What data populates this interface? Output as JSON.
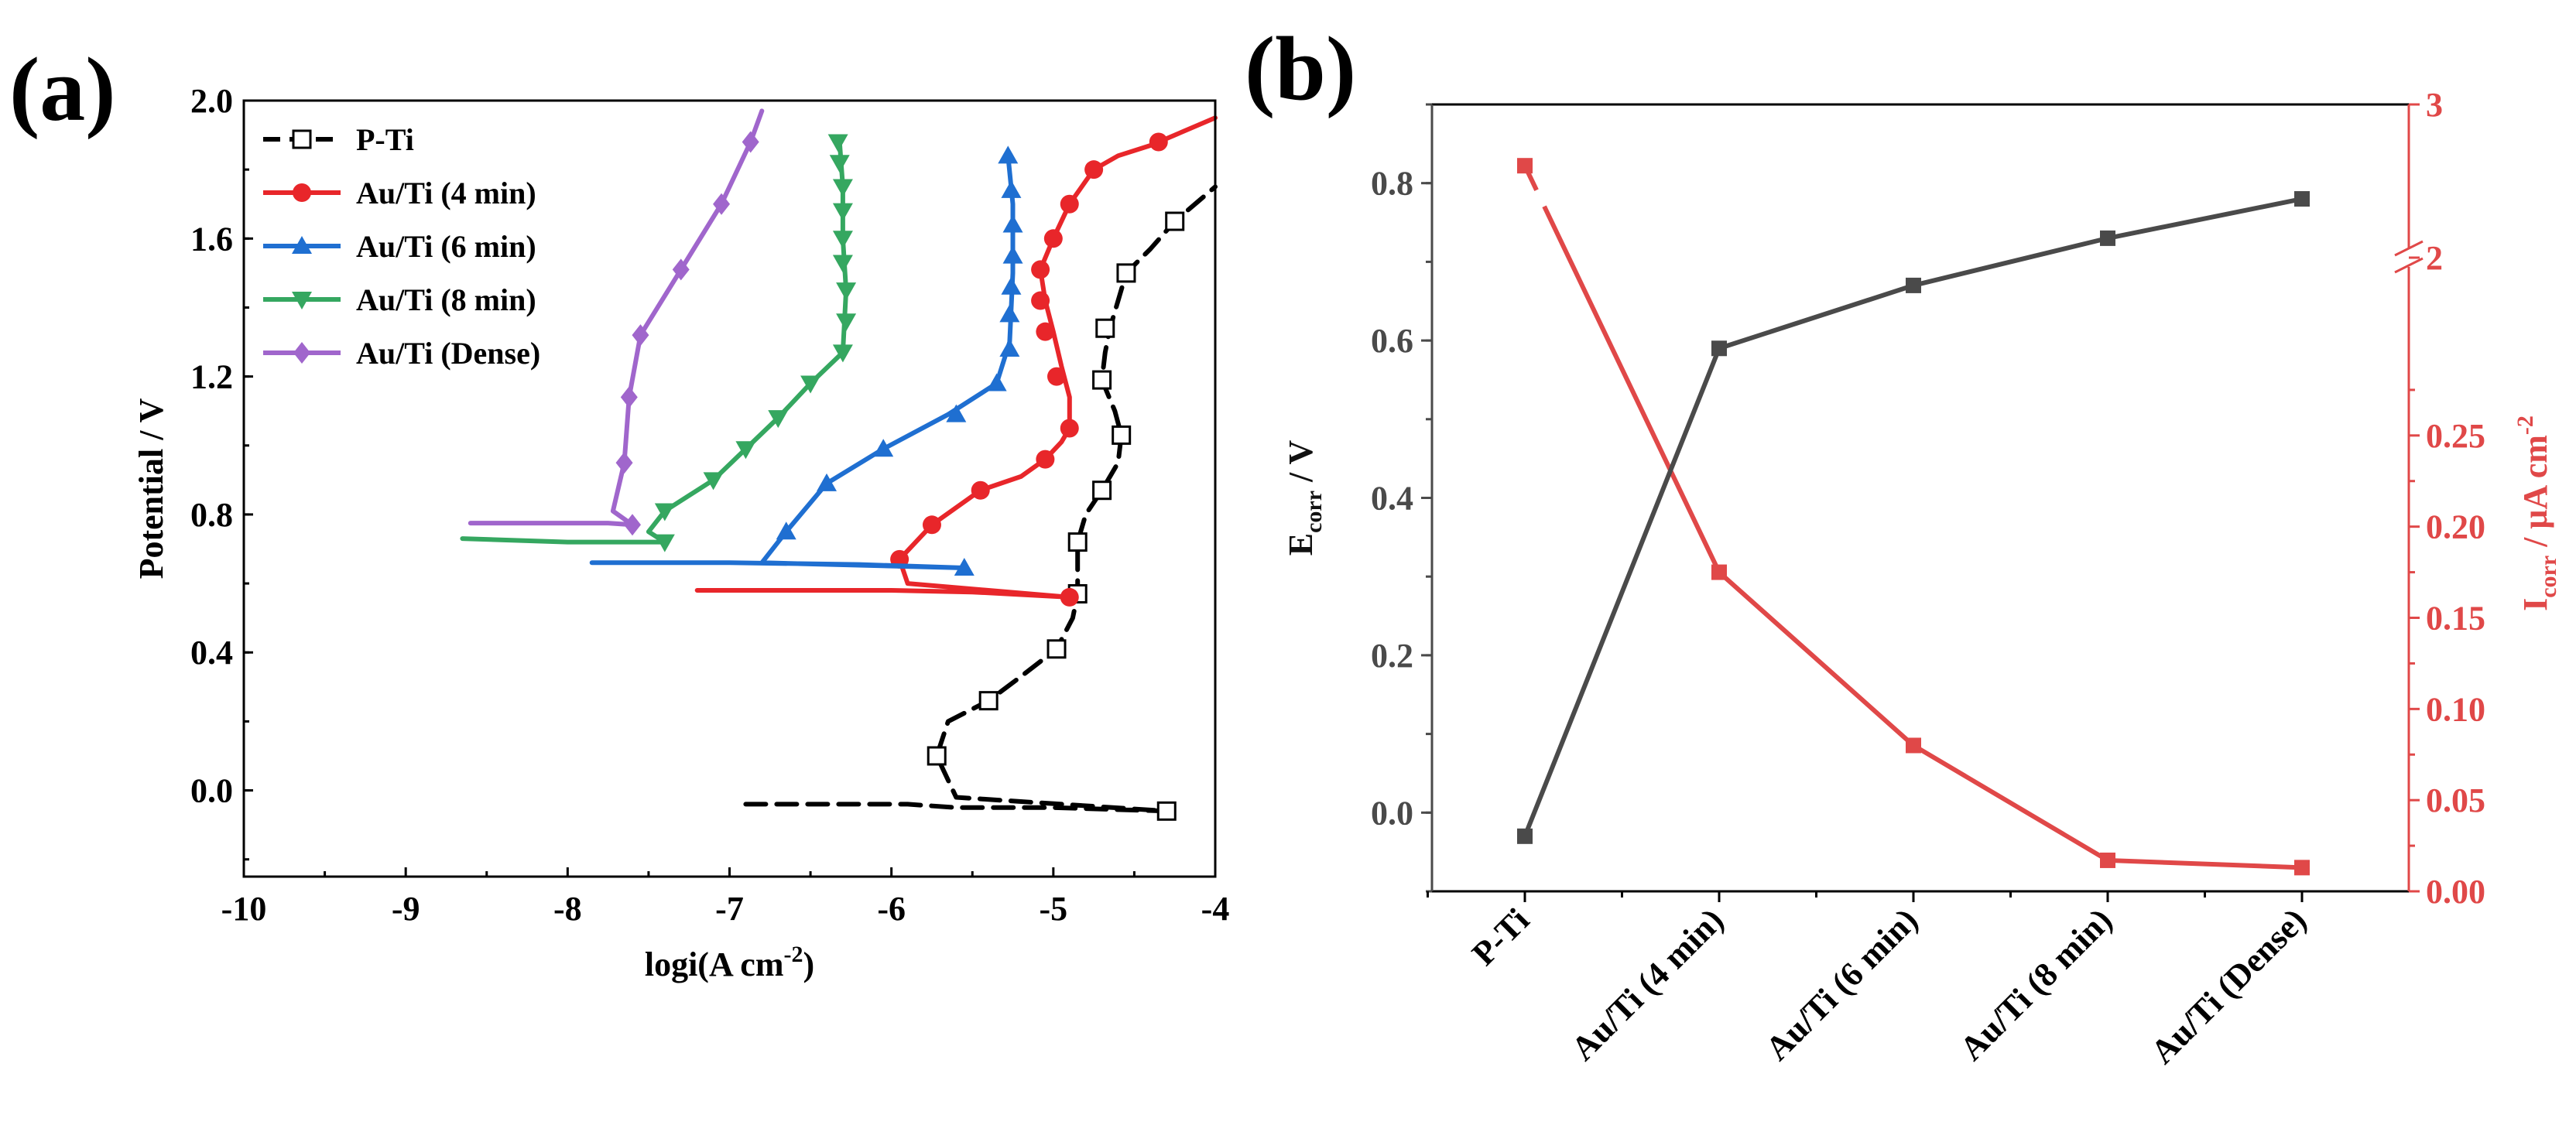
{
  "panels": {
    "a_label": "(a)",
    "b_label": "(b)"
  },
  "chart_data": [
    {
      "type": "line",
      "panel": "(a)",
      "title": "",
      "xlabel": "logi(A cm",
      "xlabel_sup": "-2",
      "xlabel_end": ")",
      "ylabel": "Potential / V",
      "xlim": [
        -10,
        -4
      ],
      "ylim": [
        -0.25,
        2.0
      ],
      "xticks": [
        -10,
        -9,
        -8,
        -7,
        -6,
        -5,
        -4
      ],
      "xtick_labels": [
        "-10",
        "-9",
        "-8",
        "-7",
        "-6",
        "-5",
        "-4"
      ],
      "yticks": [
        0.0,
        0.4,
        0.8,
        1.2,
        1.6,
        2.0
      ],
      "ytick_labels": [
        "0.0",
        "0.4",
        "0.8",
        "1.2",
        "1.6",
        "2.0"
      ],
      "legend_position": "top-left",
      "series": [
        {
          "name": "P-Ti",
          "color": "#000000",
          "dash": true,
          "marker": "open-square",
          "points": [
            [
              -6.9,
              -0.04
            ],
            [
              -6.3,
              -0.04
            ],
            [
              -5.9,
              -0.04
            ],
            [
              -5.6,
              -0.05
            ],
            [
              -5.0,
              -0.05
            ],
            [
              -4.3,
              -0.06
            ],
            [
              -5.6,
              -0.02
            ],
            [
              -5.72,
              0.1
            ],
            [
              -5.65,
              0.2
            ],
            [
              -5.4,
              0.26
            ],
            [
              -5.2,
              0.33
            ],
            [
              -4.98,
              0.41
            ],
            [
              -4.88,
              0.5
            ],
            [
              -4.85,
              0.57
            ],
            [
              -4.85,
              0.65
            ],
            [
              -4.85,
              0.72
            ],
            [
              -4.8,
              0.8
            ],
            [
              -4.7,
              0.87
            ],
            [
              -4.6,
              0.95
            ],
            [
              -4.58,
              1.03
            ],
            [
              -4.62,
              1.1
            ],
            [
              -4.7,
              1.19
            ],
            [
              -4.68,
              1.27
            ],
            [
              -4.65,
              1.34
            ],
            [
              -4.6,
              1.42
            ],
            [
              -4.55,
              1.5
            ],
            [
              -4.4,
              1.57
            ],
            [
              -4.25,
              1.65
            ],
            [
              -4.1,
              1.71
            ],
            [
              -4.0,
              1.75
            ]
          ],
          "markers": [
            [
              -4.3,
              -0.06
            ],
            [
              -5.72,
              0.1
            ],
            [
              -5.4,
              0.26
            ],
            [
              -4.98,
              0.41
            ],
            [
              -4.85,
              0.57
            ],
            [
              -4.85,
              0.72
            ],
            [
              -4.7,
              0.87
            ],
            [
              -4.58,
              1.03
            ],
            [
              -4.7,
              1.19
            ],
            [
              -4.68,
              1.34
            ],
            [
              -4.55,
              1.5
            ],
            [
              -4.25,
              1.65
            ]
          ]
        },
        {
          "name": "Au/Ti (4 min)",
          "color": "#e8262a",
          "dash": false,
          "marker": "circle",
          "points": [
            [
              -7.2,
              0.58
            ],
            [
              -6.5,
              0.58
            ],
            [
              -6.0,
              0.58
            ],
            [
              -5.5,
              0.575
            ],
            [
              -4.9,
              0.56
            ],
            [
              -5.9,
              0.6
            ],
            [
              -5.95,
              0.67
            ],
            [
              -5.75,
              0.77
            ],
            [
              -5.45,
              0.87
            ],
            [
              -5.2,
              0.91
            ],
            [
              -5.05,
              0.96
            ],
            [
              -4.95,
              1.01
            ],
            [
              -4.9,
              1.05
            ],
            [
              -4.9,
              1.14
            ],
            [
              -4.95,
              1.23
            ],
            [
              -5.0,
              1.33
            ],
            [
              -5.05,
              1.42
            ],
            [
              -5.08,
              1.51
            ],
            [
              -5.0,
              1.6
            ],
            [
              -4.9,
              1.7
            ],
            [
              -4.75,
              1.8
            ],
            [
              -4.6,
              1.84
            ],
            [
              -4.4,
              1.87
            ],
            [
              -4.25,
              1.9
            ],
            [
              -4.0,
              1.95
            ]
          ],
          "markers": [
            [
              -4.9,
              0.56
            ],
            [
              -5.95,
              0.67
            ],
            [
              -5.75,
              0.77
            ],
            [
              -5.45,
              0.87
            ],
            [
              -5.05,
              0.96
            ],
            [
              -4.9,
              1.05
            ],
            [
              -4.98,
              1.2
            ],
            [
              -5.05,
              1.33
            ],
            [
              -5.08,
              1.42
            ],
            [
              -5.08,
              1.51
            ],
            [
              -5.0,
              1.6
            ],
            [
              -4.9,
              1.7
            ],
            [
              -4.75,
              1.8
            ],
            [
              -4.35,
              1.88
            ]
          ]
        },
        {
          "name": "Au/Ti (6 min)",
          "color": "#1f6fd1",
          "dash": false,
          "marker": "triangle-up",
          "points": [
            [
              -7.85,
              0.66
            ],
            [
              -7.0,
              0.66
            ],
            [
              -6.2,
              0.655
            ],
            [
              -5.55,
              0.645
            ],
            [
              -6.8,
              0.66
            ],
            [
              -6.65,
              0.75
            ],
            [
              -6.4,
              0.89
            ],
            [
              -6.05,
              0.99
            ],
            [
              -5.65,
              1.09
            ],
            [
              -5.35,
              1.18
            ],
            [
              -5.27,
              1.3
            ],
            [
              -5.25,
              1.5
            ],
            [
              -5.25,
              1.7
            ],
            [
              -5.28,
              1.84
            ]
          ],
          "markers": [
            [
              -5.55,
              0.645
            ],
            [
              -6.65,
              0.75
            ],
            [
              -6.4,
              0.89
            ],
            [
              -6.05,
              0.99
            ],
            [
              -5.6,
              1.09
            ],
            [
              -5.35,
              1.18
            ],
            [
              -5.27,
              1.28
            ],
            [
              -5.27,
              1.38
            ],
            [
              -5.26,
              1.46
            ],
            [
              -5.25,
              1.55
            ],
            [
              -5.25,
              1.64
            ],
            [
              -5.26,
              1.74
            ],
            [
              -5.28,
              1.84
            ]
          ]
        },
        {
          "name": "Au/Ti (8 min)",
          "color": "#35a760",
          "dash": false,
          "marker": "triangle-down",
          "points": [
            [
              -8.65,
              0.73
            ],
            [
              -8.0,
              0.72
            ],
            [
              -7.4,
              0.72
            ],
            [
              -7.5,
              0.75
            ],
            [
              -7.4,
              0.81
            ],
            [
              -7.1,
              0.9
            ],
            [
              -6.9,
              0.99
            ],
            [
              -6.7,
              1.08
            ],
            [
              -6.5,
              1.18
            ],
            [
              -6.3,
              1.27
            ],
            [
              -6.28,
              1.45
            ],
            [
              -6.3,
              1.6
            ],
            [
              -6.3,
              1.75
            ],
            [
              -6.32,
              1.88
            ]
          ],
          "markers": [
            [
              -7.4,
              0.72
            ],
            [
              -7.4,
              0.81
            ],
            [
              -7.1,
              0.9
            ],
            [
              -6.9,
              0.99
            ],
            [
              -6.7,
              1.08
            ],
            [
              -6.5,
              1.18
            ],
            [
              -6.3,
              1.27
            ],
            [
              -6.28,
              1.36
            ],
            [
              -6.28,
              1.45
            ],
            [
              -6.3,
              1.53
            ],
            [
              -6.3,
              1.6
            ],
            [
              -6.3,
              1.68
            ],
            [
              -6.3,
              1.75
            ],
            [
              -6.32,
              1.82
            ],
            [
              -6.33,
              1.88
            ]
          ]
        },
        {
          "name": "Au/Ti (Dense)",
          "color": "#a066cc",
          "dash": false,
          "marker": "diamond",
          "points": [
            [
              -8.6,
              0.775
            ],
            [
              -8.1,
              0.775
            ],
            [
              -7.75,
              0.775
            ],
            [
              -7.6,
              0.77
            ],
            [
              -7.72,
              0.81
            ],
            [
              -7.65,
              0.95
            ],
            [
              -7.62,
              1.14
            ],
            [
              -7.55,
              1.32
            ],
            [
              -7.3,
              1.51
            ],
            [
              -7.05,
              1.7
            ],
            [
              -6.87,
              1.88
            ],
            [
              -6.8,
              1.97
            ]
          ],
          "markers": [
            [
              -7.6,
              0.77
            ],
            [
              -7.65,
              0.95
            ],
            [
              -7.62,
              1.14
            ],
            [
              -7.55,
              1.32
            ],
            [
              -7.3,
              1.51
            ],
            [
              -7.05,
              1.7
            ],
            [
              -6.87,
              1.88
            ]
          ]
        }
      ]
    },
    {
      "type": "line",
      "panel": "(b)",
      "title": "",
      "categories": [
        "P-Ti",
        "Au/Ti (4 min)",
        "Au/Ti (6 min)",
        "Au/Ti (8 min)",
        "Au/Ti (Dense)"
      ],
      "ylabel_left": "E",
      "ylabel_left_sub": "corr",
      "ylabel_left_end": " / V",
      "ylabel_right": "I",
      "ylabel_right_sub": "corr",
      "ylabel_right_mid": " / μA cm",
      "ylabel_right_sup": "-2",
      "left_color": "#4a4a4a",
      "right_color": "#e04848",
      "ylim_left": [
        -0.1,
        0.9
      ],
      "yticks_left": [
        0.0,
        0.2,
        0.4,
        0.6,
        0.8
      ],
      "ytick_labels_left": [
        "0.0",
        "0.2",
        "0.4",
        "0.6",
        "0.8"
      ],
      "ylim_right_lower": [
        0.0,
        0.3
      ],
      "yticks_right": [
        0.0,
        0.05,
        0.1,
        0.15,
        0.2,
        0.25,
        2,
        3
      ],
      "ytick_labels_right": [
        "0.00",
        "0.05",
        "0.10",
        "0.15",
        "0.20",
        "0.25",
        "2",
        "3"
      ],
      "right_axis_break": "between 0.3 and 2",
      "series": [
        {
          "name": "Ecorr",
          "axis": "left",
          "values": [
            -0.03,
            0.59,
            0.67,
            0.73,
            0.78
          ]
        },
        {
          "name": "Icorr",
          "axis": "right",
          "values": [
            2.6,
            0.175,
            0.08,
            0.017,
            0.013
          ]
        }
      ]
    }
  ]
}
